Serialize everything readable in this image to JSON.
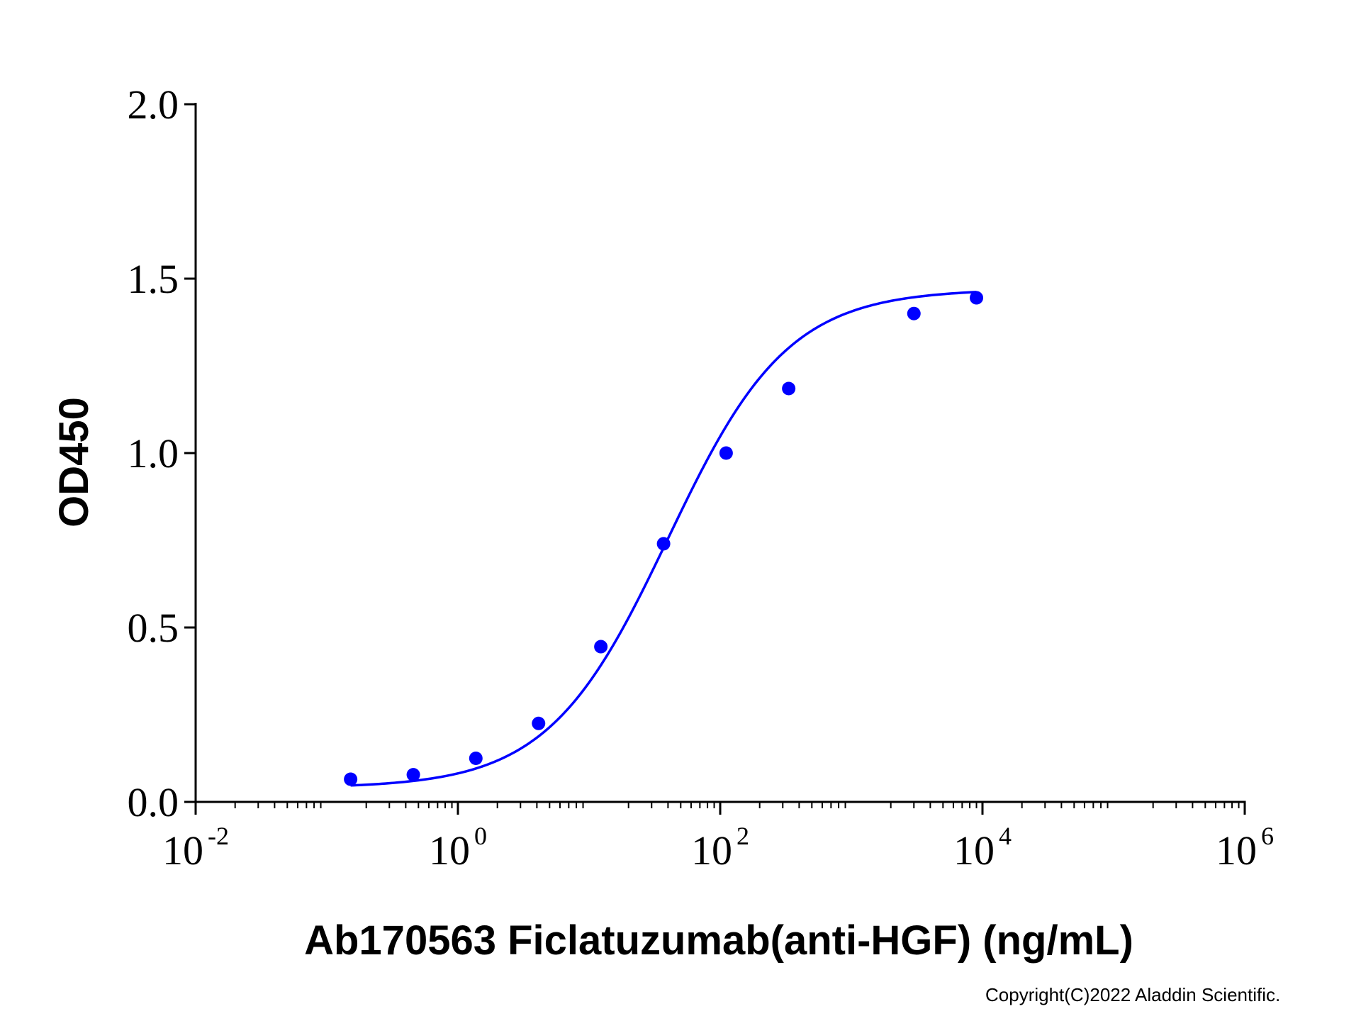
{
  "chart_data": {
    "type": "scatter",
    "xlabel": "Ab170563 Ficlatuzumab(anti-HGF) (ng/mL)",
    "ylabel": "OD450",
    "x_scale": "log10",
    "xlim": [
      0.01,
      1000000
    ],
    "ylim": [
      0,
      2.0
    ],
    "y_ticks": [
      "0.0",
      "0.5",
      "1.0",
      "1.5",
      "2.0"
    ],
    "x_ticks": [
      {
        "value": 0.01,
        "base": "10",
        "exp": "-2"
      },
      {
        "value": 1,
        "base": "10",
        "exp": "0"
      },
      {
        "value": 100,
        "base": "10",
        "exp": "2"
      },
      {
        "value": 10000,
        "base": "10",
        "exp": "4"
      },
      {
        "value": 1000000,
        "base": "10",
        "exp": "6"
      }
    ],
    "grid": false,
    "series": [
      {
        "color": "#0000ff",
        "x": [
          0.152,
          0.457,
          1.37,
          4.12,
          12.3,
          37.0,
          111,
          333,
          3000,
          9000
        ],
        "y": [
          0.065,
          0.078,
          0.125,
          0.225,
          0.445,
          0.74,
          1.0,
          1.185,
          1.4,
          1.445
        ],
        "fit": {
          "model": "4PL",
          "bottom": 0.04,
          "top": 1.47,
          "ec50": 40,
          "hill": 0.95
        }
      }
    ]
  },
  "footer": {
    "copyright": "Copyright(C)2022 Aladdin Scientific."
  }
}
